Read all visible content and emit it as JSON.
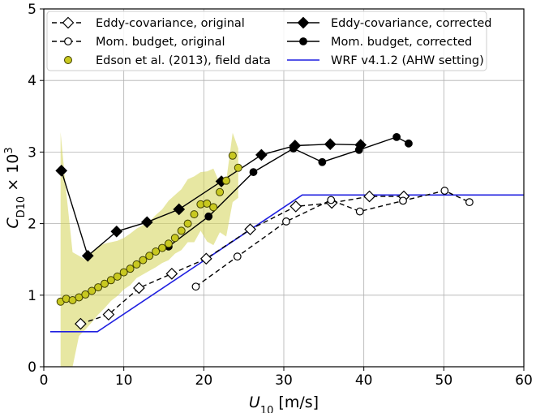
{
  "chart_data": {
    "type": "line",
    "xlabel": "U10 [m/s]",
    "xlabel_main": "U",
    "xlabel_sub": "10",
    "xlabel_unit": " [m/s]",
    "ylabel_main": "C",
    "ylabel_sub": "D10",
    "ylabel_times": " × 10",
    "ylabel_sup": "3",
    "xlim": [
      0,
      60
    ],
    "ylim": [
      0,
      5
    ],
    "xticks": [
      0,
      10,
      20,
      30,
      40,
      50,
      60
    ],
    "yticks": [
      0,
      1,
      2,
      3,
      4,
      5
    ],
    "xtick_labels": [
      "0",
      "10",
      "20",
      "30",
      "40",
      "50",
      "60"
    ],
    "ytick_labels": [
      "0",
      "1",
      "2",
      "3",
      "4",
      "5"
    ],
    "grid": true,
    "legend": {
      "placement": "top",
      "entries": [
        "Eddy-covariance, original",
        "Eddy-covariance, corrected",
        "Mom. budget, original",
        "Mom. budget, corrected",
        "Edson et al. (2013), field data",
        "WRF v4.1.2 (AHW setting)"
      ]
    },
    "colors": {
      "black": "#000000",
      "wrf": "#1f1fe0",
      "edson_fill": "#c8c820",
      "edson_edge": "#404000",
      "band": "#d4d455"
    },
    "series": [
      {
        "name": "Eddy-covariance, original",
        "style": "dashed",
        "marker": "diamond-open",
        "x": [
          4.6,
          8.1,
          11.9,
          16.0,
          20.3,
          25.8,
          31.5,
          36.0,
          40.7,
          45.0
        ],
        "y": [
          0.6,
          0.73,
          1.1,
          1.3,
          1.51,
          1.92,
          2.24,
          2.29,
          2.38,
          2.38
        ]
      },
      {
        "name": "Eddy-covariance, corrected",
        "style": "solid",
        "marker": "diamond-filled",
        "x": [
          2.2,
          5.5,
          9.1,
          12.9,
          16.9,
          22.2,
          27.2,
          31.4,
          35.8,
          39.6
        ],
        "y": [
          2.74,
          1.55,
          1.89,
          2.02,
          2.2,
          2.59,
          2.96,
          3.09,
          3.11,
          3.1
        ]
      },
      {
        "name": "Mom. budget, original",
        "style": "dashed",
        "marker": "circle-open",
        "x": [
          19.0,
          24.2,
          30.3,
          35.9,
          39.5,
          44.9,
          50.1,
          53.2
        ],
        "y": [
          1.12,
          1.54,
          2.03,
          2.33,
          2.17,
          2.32,
          2.46,
          2.3
        ]
      },
      {
        "name": "Mom. budget, corrected",
        "style": "solid",
        "marker": "circle-filled",
        "x": [
          15.6,
          20.6,
          26.2,
          31.2,
          34.8,
          39.4,
          44.1,
          45.6
        ],
        "y": [
          1.68,
          2.1,
          2.72,
          3.05,
          2.86,
          3.03,
          3.21,
          3.12
        ]
      },
      {
        "name": "Edson et al. (2013), field data",
        "style": "markers",
        "marker": "circle-olive",
        "x": [
          2.1,
          2.8,
          3.6,
          4.4,
          5.2,
          6.0,
          6.8,
          7.6,
          8.4,
          9.2,
          10.0,
          10.8,
          11.6,
          12.4,
          13.2,
          14.0,
          14.8,
          15.6,
          16.4,
          17.2,
          18.0,
          18.8,
          19.6,
          20.4,
          21.2,
          22.0,
          22.8,
          23.6,
          24.3
        ],
        "y": [
          0.91,
          0.95,
          0.93,
          0.97,
          1.01,
          1.06,
          1.11,
          1.16,
          1.21,
          1.26,
          1.32,
          1.37,
          1.43,
          1.49,
          1.55,
          1.61,
          1.66,
          1.72,
          1.8,
          1.9,
          2.0,
          2.13,
          2.27,
          2.28,
          2.23,
          2.44,
          2.6,
          2.95,
          2.78
        ]
      },
      {
        "name": "WRF v4.1.2 (AHW setting)",
        "style": "solid",
        "marker": "none",
        "x": [
          0.8,
          6.7,
          32.3,
          60.0
        ],
        "y": [
          0.49,
          0.49,
          2.4,
          2.4
        ]
      }
    ],
    "band": {
      "name": "Edson field data spread",
      "x": [
        2.1,
        2.8,
        3.6,
        4.4,
        5.2,
        6.0,
        6.8,
        7.6,
        8.4,
        9.2,
        10.0,
        10.8,
        11.6,
        12.4,
        13.2,
        14.0,
        14.8,
        15.6,
        16.4,
        17.2,
        18.0,
        18.8,
        19.6,
        20.4,
        21.2,
        22.0,
        22.8,
        23.6,
        24.3
      ],
      "upper": [
        3.28,
        2.45,
        1.6,
        1.55,
        1.5,
        1.6,
        1.68,
        1.72,
        1.74,
        1.76,
        1.8,
        1.86,
        1.93,
        1.98,
        2.03,
        2.12,
        2.2,
        2.32,
        2.4,
        2.48,
        2.62,
        2.66,
        2.72,
        2.73,
        2.77,
        2.56,
        2.6,
        3.27,
        3.05
      ],
      "lower": [
        0.0,
        0.0,
        0.0,
        0.43,
        0.52,
        0.62,
        0.73,
        0.82,
        0.92,
        0.99,
        1.08,
        1.14,
        1.24,
        1.29,
        1.34,
        1.39,
        1.45,
        1.49,
        1.58,
        1.63,
        1.74,
        1.74,
        1.9,
        1.75,
        1.7,
        1.88,
        1.82,
        2.3,
        2.36
      ]
    }
  }
}
